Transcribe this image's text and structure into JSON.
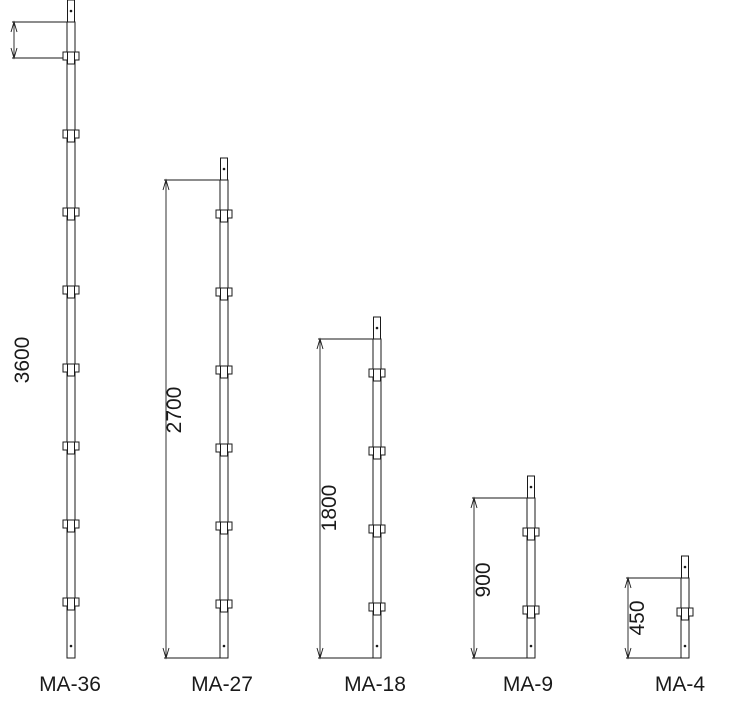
{
  "diagram": {
    "line_color": "#1a1a1a",
    "background": "#ffffff",
    "posts": [
      {
        "model": "MA-36",
        "dimension": "3600",
        "ring_count": 8
      },
      {
        "model": "MA-27",
        "dimension": "2700",
        "ring_count": 6
      },
      {
        "model": "MA-18",
        "dimension": "1800",
        "ring_count": 4
      },
      {
        "model": "MA-9",
        "dimension": "900",
        "ring_count": 2
      },
      {
        "model": "MA-4",
        "dimension": "450",
        "ring_count": 1
      }
    ]
  }
}
